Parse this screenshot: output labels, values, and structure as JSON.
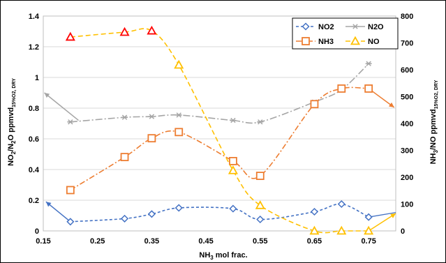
{
  "chart_data": {
    "type": "line",
    "title": "",
    "xlabel_main": "NH",
    "xlabel_sub": "3",
    "xlabel_rest": " mol frac.",
    "ylabel_left_parts": [
      "NO",
      "2",
      "/N",
      "2",
      "O ppmvd",
      "15%O2, DRY"
    ],
    "ylabel_right_parts": [
      "NH",
      "3",
      "/NO ppmvd",
      "15%O2, DRY"
    ],
    "xlim": [
      0.15,
      0.8
    ],
    "ylim_left": [
      0,
      1.4
    ],
    "ylim_right": [
      0,
      800
    ],
    "x_ticks": [
      "0.15",
      "0.25",
      "0.35",
      "0.45",
      "0.55",
      "0.65",
      "0.75"
    ],
    "x_tick_values": [
      0.15,
      0.25,
      0.35,
      0.45,
      0.55,
      0.65,
      0.75
    ],
    "y_left_ticks": [
      "0",
      "0.2",
      "0.4",
      "0.6",
      "0.8",
      "1",
      "1.2",
      "1.4"
    ],
    "y_left_tick_values": [
      0,
      0.2,
      0.4,
      0.6,
      0.8,
      1.0,
      1.2,
      1.4
    ],
    "y_right_ticks": [
      "0",
      "100",
      "200",
      "300",
      "400",
      "500",
      "600",
      "700",
      "800"
    ],
    "y_right_tick_values": [
      0,
      100,
      200,
      300,
      400,
      500,
      600,
      700,
      800
    ],
    "grid": "horizontal",
    "legend_placement": "top-right",
    "series": [
      {
        "name": "NO2",
        "axis": "left",
        "color": "#4472C4",
        "marker": "diamond",
        "dash": "4,3",
        "x": [
          0.2,
          0.3,
          0.35,
          0.4,
          0.5,
          0.55,
          0.65,
          0.7,
          0.75
        ],
        "y": [
          0.06,
          0.08,
          0.11,
          0.15,
          0.145,
          0.075,
          0.125,
          0.175,
          0.09
        ],
        "trend": {
          "x": [
            0.155,
            0.2
          ],
          "y": [
            0.19,
            0.06
          ]
        },
        "trend_end": {
          "x": [
            0.75,
            0.8
          ],
          "y": [
            0.09,
            0.12
          ]
        }
      },
      {
        "name": "N2O",
        "axis": "left",
        "color": "#A5A5A5",
        "marker": "asterisk",
        "dash": "10,3,2,3",
        "x": [
          0.2,
          0.3,
          0.35,
          0.4,
          0.5,
          0.55,
          0.65,
          0.7,
          0.75
        ],
        "y": [
          0.71,
          0.74,
          0.745,
          0.755,
          0.72,
          0.71,
          0.84,
          0.92,
          1.09
        ],
        "trend": {
          "x": [
            0.152,
            0.215
          ],
          "y": [
            0.9,
            0.72
          ]
        }
      },
      {
        "name": "NH3",
        "axis": "right",
        "color": "#ED7D31",
        "marker": "square",
        "dash": "8,3,2,3",
        "x": [
          0.2,
          0.3,
          0.35,
          0.4,
          0.5,
          0.55,
          0.65,
          0.7,
          0.75
        ],
        "y": [
          152,
          275,
          345,
          368,
          260,
          205,
          472,
          530,
          530
        ],
        "trend": {
          "x": [
            0.75,
            0.797
          ],
          "y": [
            530,
            460
          ]
        }
      },
      {
        "name": "NO",
        "axis": "right",
        "color": "#FFC000",
        "marker": "triangle",
        "dash": "7,4",
        "x": [
          0.2,
          0.3,
          0.35,
          0.4,
          0.5,
          0.55,
          0.65,
          0.7,
          0.75
        ],
        "y": [
          722,
          740,
          745,
          618,
          225,
          95,
          0,
          0,
          0
        ],
        "red_markers": [
          0,
          1,
          2
        ],
        "trend": {
          "x": [
            0.75,
            0.8
          ],
          "y": [
            0,
            65
          ]
        }
      }
    ]
  }
}
